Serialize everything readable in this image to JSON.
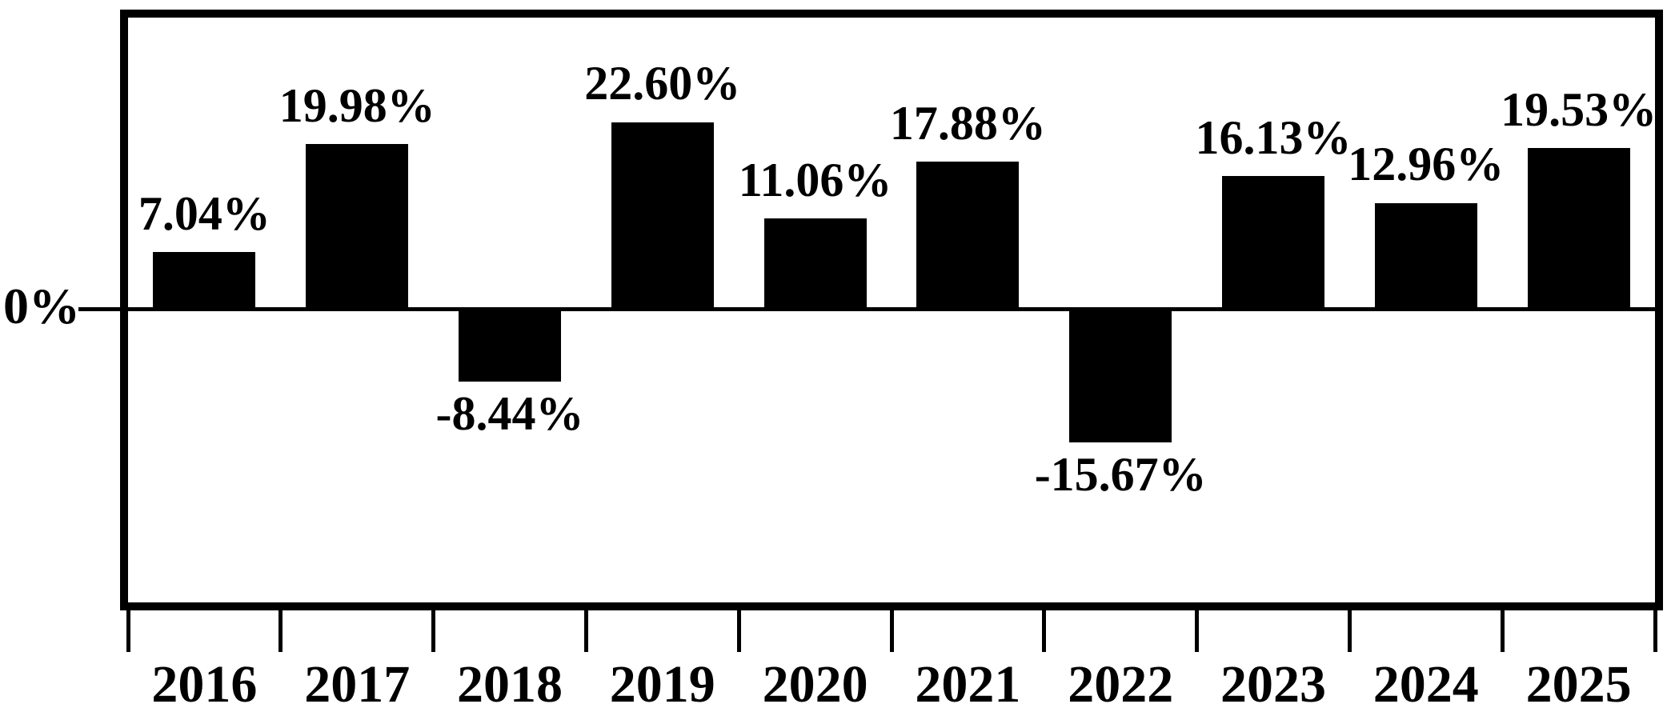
{
  "chart_data": {
    "type": "bar",
    "title": "",
    "categories": [
      "2016",
      "2017",
      "2018",
      "2019",
      "2020",
      "2021",
      "2022",
      "2023",
      "2024",
      "2025"
    ],
    "values": [
      7.04,
      19.98,
      -8.44,
      22.6,
      11.06,
      17.88,
      -15.67,
      16.13,
      12.96,
      19.53
    ],
    "bar_labels": [
      "7.04%",
      "19.98%",
      "-8.44%",
      "22.60%",
      "11.06%",
      "17.88%",
      "-15.67%",
      "16.13%",
      "12.96%",
      "19.53%"
    ],
    "xlabel": "",
    "ylabel": "",
    "y_zero_label": "0%",
    "ylim": [
      -35,
      35
    ],
    "grid": false,
    "legend": false,
    "bar_color": "#000000",
    "axis_color": "#000000",
    "background_color": "#ffffff"
  }
}
